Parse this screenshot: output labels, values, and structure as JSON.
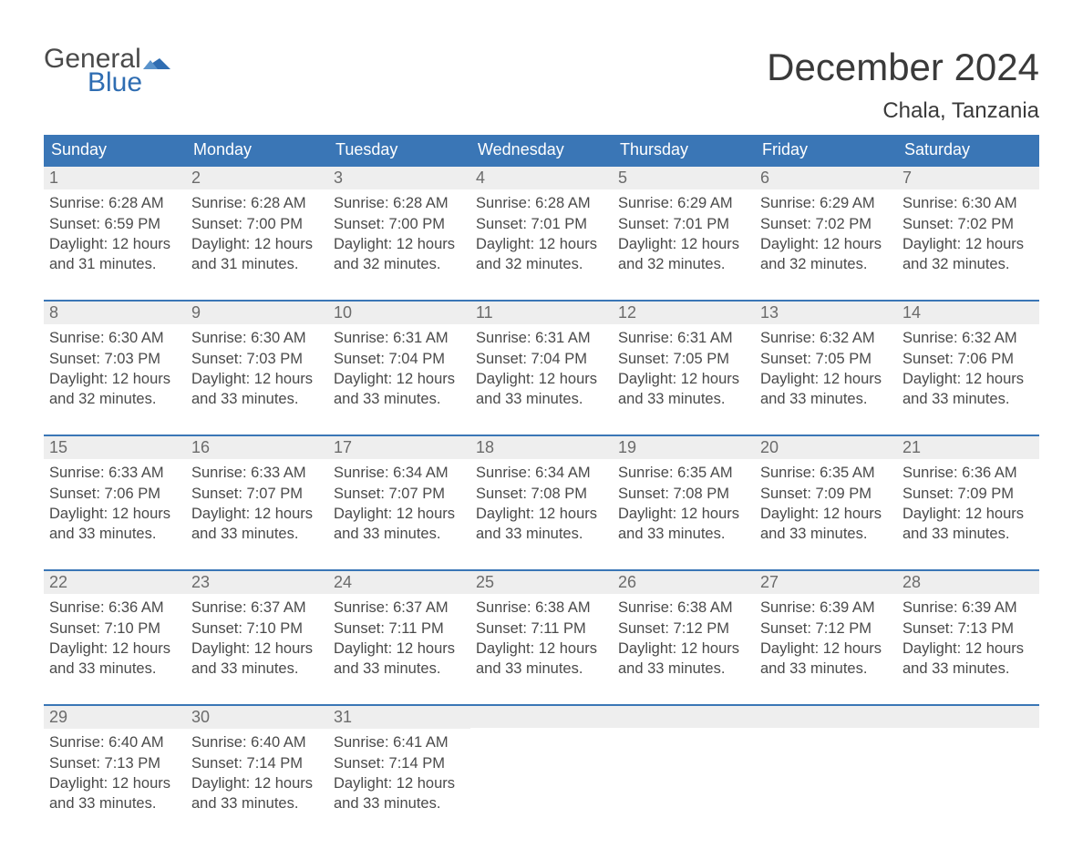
{
  "logo": {
    "text1": "General",
    "text2": "Blue",
    "flag_color": "#2f6db2"
  },
  "title": "December 2024",
  "location": "Chala, Tanzania",
  "colors": {
    "header_bg": "#3a76b6",
    "header_text": "#ffffff",
    "daynum_bg": "#eeeeee",
    "daynum_text": "#6b6b6b",
    "body_text": "#4a4a4a",
    "week_border": "#3a76b6",
    "logo_blue": "#2f6db2"
  },
  "weekday_labels": [
    "Sunday",
    "Monday",
    "Tuesday",
    "Wednesday",
    "Thursday",
    "Friday",
    "Saturday"
  ],
  "weeks": [
    [
      {
        "n": "1",
        "sunrise": "Sunrise: 6:28 AM",
        "sunset": "Sunset: 6:59 PM",
        "d1": "Daylight: 12 hours",
        "d2": "and 31 minutes."
      },
      {
        "n": "2",
        "sunrise": "Sunrise: 6:28 AM",
        "sunset": "Sunset: 7:00 PM",
        "d1": "Daylight: 12 hours",
        "d2": "and 31 minutes."
      },
      {
        "n": "3",
        "sunrise": "Sunrise: 6:28 AM",
        "sunset": "Sunset: 7:00 PM",
        "d1": "Daylight: 12 hours",
        "d2": "and 32 minutes."
      },
      {
        "n": "4",
        "sunrise": "Sunrise: 6:28 AM",
        "sunset": "Sunset: 7:01 PM",
        "d1": "Daylight: 12 hours",
        "d2": "and 32 minutes."
      },
      {
        "n": "5",
        "sunrise": "Sunrise: 6:29 AM",
        "sunset": "Sunset: 7:01 PM",
        "d1": "Daylight: 12 hours",
        "d2": "and 32 minutes."
      },
      {
        "n": "6",
        "sunrise": "Sunrise: 6:29 AM",
        "sunset": "Sunset: 7:02 PM",
        "d1": "Daylight: 12 hours",
        "d2": "and 32 minutes."
      },
      {
        "n": "7",
        "sunrise": "Sunrise: 6:30 AM",
        "sunset": "Sunset: 7:02 PM",
        "d1": "Daylight: 12 hours",
        "d2": "and 32 minutes."
      }
    ],
    [
      {
        "n": "8",
        "sunrise": "Sunrise: 6:30 AM",
        "sunset": "Sunset: 7:03 PM",
        "d1": "Daylight: 12 hours",
        "d2": "and 32 minutes."
      },
      {
        "n": "9",
        "sunrise": "Sunrise: 6:30 AM",
        "sunset": "Sunset: 7:03 PM",
        "d1": "Daylight: 12 hours",
        "d2": "and 33 minutes."
      },
      {
        "n": "10",
        "sunrise": "Sunrise: 6:31 AM",
        "sunset": "Sunset: 7:04 PM",
        "d1": "Daylight: 12 hours",
        "d2": "and 33 minutes."
      },
      {
        "n": "11",
        "sunrise": "Sunrise: 6:31 AM",
        "sunset": "Sunset: 7:04 PM",
        "d1": "Daylight: 12 hours",
        "d2": "and 33 minutes."
      },
      {
        "n": "12",
        "sunrise": "Sunrise: 6:31 AM",
        "sunset": "Sunset: 7:05 PM",
        "d1": "Daylight: 12 hours",
        "d2": "and 33 minutes."
      },
      {
        "n": "13",
        "sunrise": "Sunrise: 6:32 AM",
        "sunset": "Sunset: 7:05 PM",
        "d1": "Daylight: 12 hours",
        "d2": "and 33 minutes."
      },
      {
        "n": "14",
        "sunrise": "Sunrise: 6:32 AM",
        "sunset": "Sunset: 7:06 PM",
        "d1": "Daylight: 12 hours",
        "d2": "and 33 minutes."
      }
    ],
    [
      {
        "n": "15",
        "sunrise": "Sunrise: 6:33 AM",
        "sunset": "Sunset: 7:06 PM",
        "d1": "Daylight: 12 hours",
        "d2": "and 33 minutes."
      },
      {
        "n": "16",
        "sunrise": "Sunrise: 6:33 AM",
        "sunset": "Sunset: 7:07 PM",
        "d1": "Daylight: 12 hours",
        "d2": "and 33 minutes."
      },
      {
        "n": "17",
        "sunrise": "Sunrise: 6:34 AM",
        "sunset": "Sunset: 7:07 PM",
        "d1": "Daylight: 12 hours",
        "d2": "and 33 minutes."
      },
      {
        "n": "18",
        "sunrise": "Sunrise: 6:34 AM",
        "sunset": "Sunset: 7:08 PM",
        "d1": "Daylight: 12 hours",
        "d2": "and 33 minutes."
      },
      {
        "n": "19",
        "sunrise": "Sunrise: 6:35 AM",
        "sunset": "Sunset: 7:08 PM",
        "d1": "Daylight: 12 hours",
        "d2": "and 33 minutes."
      },
      {
        "n": "20",
        "sunrise": "Sunrise: 6:35 AM",
        "sunset": "Sunset: 7:09 PM",
        "d1": "Daylight: 12 hours",
        "d2": "and 33 minutes."
      },
      {
        "n": "21",
        "sunrise": "Sunrise: 6:36 AM",
        "sunset": "Sunset: 7:09 PM",
        "d1": "Daylight: 12 hours",
        "d2": "and 33 minutes."
      }
    ],
    [
      {
        "n": "22",
        "sunrise": "Sunrise: 6:36 AM",
        "sunset": "Sunset: 7:10 PM",
        "d1": "Daylight: 12 hours",
        "d2": "and 33 minutes."
      },
      {
        "n": "23",
        "sunrise": "Sunrise: 6:37 AM",
        "sunset": "Sunset: 7:10 PM",
        "d1": "Daylight: 12 hours",
        "d2": "and 33 minutes."
      },
      {
        "n": "24",
        "sunrise": "Sunrise: 6:37 AM",
        "sunset": "Sunset: 7:11 PM",
        "d1": "Daylight: 12 hours",
        "d2": "and 33 minutes."
      },
      {
        "n": "25",
        "sunrise": "Sunrise: 6:38 AM",
        "sunset": "Sunset: 7:11 PM",
        "d1": "Daylight: 12 hours",
        "d2": "and 33 minutes."
      },
      {
        "n": "26",
        "sunrise": "Sunrise: 6:38 AM",
        "sunset": "Sunset: 7:12 PM",
        "d1": "Daylight: 12 hours",
        "d2": "and 33 minutes."
      },
      {
        "n": "27",
        "sunrise": "Sunrise: 6:39 AM",
        "sunset": "Sunset: 7:12 PM",
        "d1": "Daylight: 12 hours",
        "d2": "and 33 minutes."
      },
      {
        "n": "28",
        "sunrise": "Sunrise: 6:39 AM",
        "sunset": "Sunset: 7:13 PM",
        "d1": "Daylight: 12 hours",
        "d2": "and 33 minutes."
      }
    ],
    [
      {
        "n": "29",
        "sunrise": "Sunrise: 6:40 AM",
        "sunset": "Sunset: 7:13 PM",
        "d1": "Daylight: 12 hours",
        "d2": "and 33 minutes."
      },
      {
        "n": "30",
        "sunrise": "Sunrise: 6:40 AM",
        "sunset": "Sunset: 7:14 PM",
        "d1": "Daylight: 12 hours",
        "d2": "and 33 minutes."
      },
      {
        "n": "31",
        "sunrise": "Sunrise: 6:41 AM",
        "sunset": "Sunset: 7:14 PM",
        "d1": "Daylight: 12 hours",
        "d2": "and 33 minutes."
      },
      {
        "empty": true
      },
      {
        "empty": true
      },
      {
        "empty": true
      },
      {
        "empty": true
      }
    ]
  ]
}
